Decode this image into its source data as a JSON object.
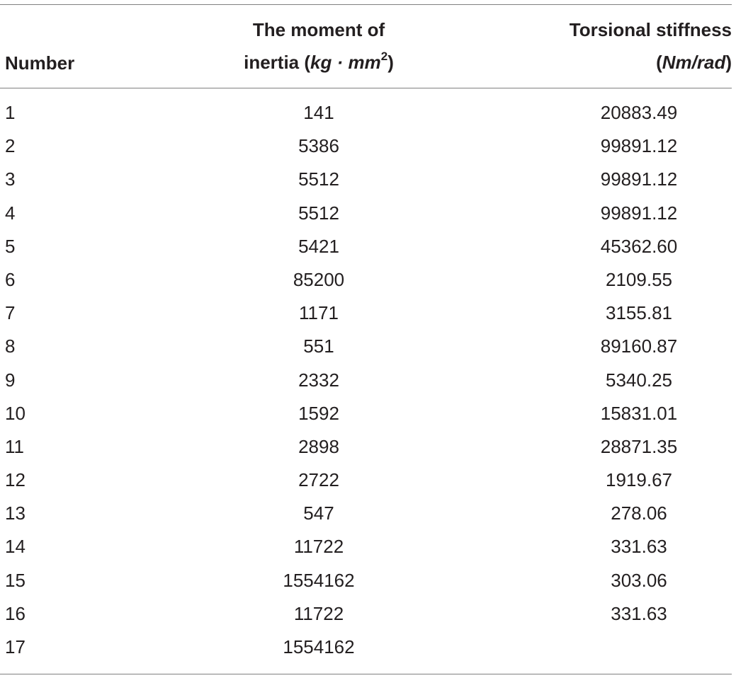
{
  "header": {
    "number": "Number",
    "inertia_line1": "The moment of",
    "inertia_line2_prefix": "inertia (",
    "inertia_unit_kg": "kg",
    "inertia_unit_dot": " · ",
    "inertia_unit_mm": "mm",
    "inertia_unit_exp": "2",
    "inertia_line2_suffix": ")",
    "torsion_line1": "Torsional stiffness",
    "torsion_line2_prefix": "(",
    "torsion_unit": "Nm/rad",
    "torsion_line2_suffix": ")"
  },
  "rows": [
    {
      "number": "1",
      "inertia": "141",
      "torsion": "20883.49"
    },
    {
      "number": "2",
      "inertia": "5386",
      "torsion": "99891.12"
    },
    {
      "number": "3",
      "inertia": "5512",
      "torsion": "99891.12"
    },
    {
      "number": "4",
      "inertia": "5512",
      "torsion": "99891.12"
    },
    {
      "number": "5",
      "inertia": "5421",
      "torsion": "45362.60"
    },
    {
      "number": "6",
      "inertia": "85200",
      "torsion": "2109.55"
    },
    {
      "number": "7",
      "inertia": "1171",
      "torsion": "3155.81"
    },
    {
      "number": "8",
      "inertia": "551",
      "torsion": "89160.87"
    },
    {
      "number": "9",
      "inertia": "2332",
      "torsion": "5340.25"
    },
    {
      "number": "10",
      "inertia": "1592",
      "torsion": "15831.01"
    },
    {
      "number": "11",
      "inertia": "2898",
      "torsion": "28871.35"
    },
    {
      "number": "12",
      "inertia": "2722",
      "torsion": "1919.67"
    },
    {
      "number": "13",
      "inertia": "547",
      "torsion": "278.06"
    },
    {
      "number": "14",
      "inertia": "11722",
      "torsion": "331.63"
    },
    {
      "number": "15",
      "inertia": "1554162",
      "torsion": "303.06"
    },
    {
      "number": "16",
      "inertia": "11722",
      "torsion": "331.63"
    },
    {
      "number": "17",
      "inertia": "1554162",
      "torsion": ""
    }
  ]
}
